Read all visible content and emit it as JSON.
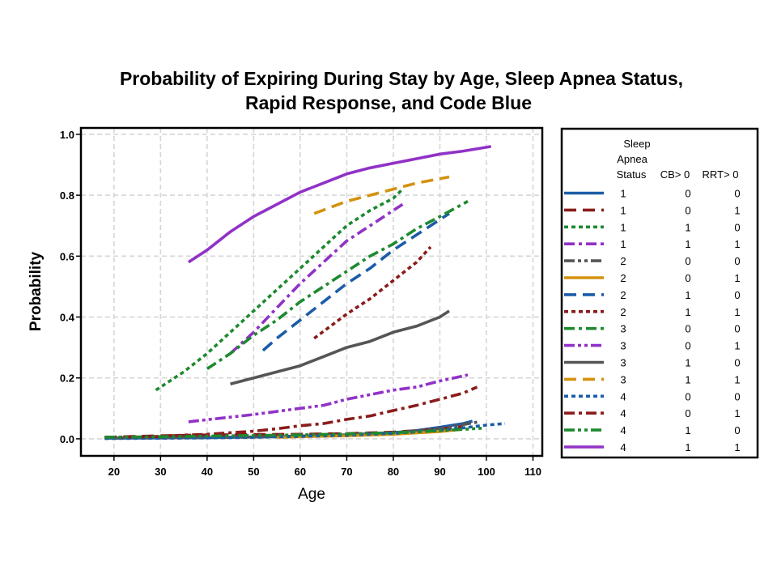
{
  "chart_data": {
    "type": "line",
    "title": [
      "Probability of Expiring During Stay by Age, Sleep Apnea Status,",
      "Rapid Response, and Code Blue"
    ],
    "xlabel": "Age",
    "ylabel": "Probability",
    "x_ticks": [
      20,
      30,
      40,
      50,
      60,
      70,
      80,
      90,
      100,
      110
    ],
    "y_ticks": [
      "0.0",
      "0.2",
      "0.4",
      "0.6",
      "0.8",
      "1.0"
    ],
    "xlim": [
      12.9,
      112
    ],
    "ylim": [
      -0.056,
      1.021
    ],
    "grid": true,
    "legend_position": "right",
    "legend": {
      "header_sleep_apnea_status": [
        "Sleep",
        "Apnea",
        "Status"
      ],
      "header_cb": "CB> 0",
      "header_rrt": "RRT> 0"
    },
    "series": [
      {
        "sleep_apnea_status": "1",
        "cb": "0",
        "rrt": "0",
        "color": "#1c5ca8",
        "line_style": "solid",
        "x": [
          18,
          30,
          40,
          50,
          60,
          70,
          80,
          85,
          90,
          95,
          97
        ],
        "y": [
          0.002,
          0.003,
          0.004,
          0.006,
          0.009,
          0.013,
          0.02,
          0.027,
          0.038,
          0.05,
          0.058
        ]
      },
      {
        "sleep_apnea_status": "1",
        "cb": "0",
        "rrt": "1",
        "color": "#8b1c1c",
        "line_style": "long-dash",
        "x": [
          18,
          25,
          30,
          40,
          50,
          60,
          70,
          80,
          90,
          95
        ],
        "y": [
          0.005,
          0.008,
          0.01,
          0.013,
          0.014,
          0.015,
          0.017,
          0.022,
          0.032,
          0.04
        ]
      },
      {
        "sleep_apnea_status": "1",
        "cb": "1",
        "rrt": "0",
        "color": "#1d8a2f",
        "line_style": "short-dash",
        "x": [
          29,
          35,
          40,
          45,
          50,
          55,
          60,
          65,
          70,
          75,
          80,
          82
        ],
        "y": [
          0.16,
          0.22,
          0.28,
          0.35,
          0.42,
          0.49,
          0.56,
          0.63,
          0.7,
          0.75,
          0.79,
          0.82
        ]
      },
      {
        "sleep_apnea_status": "1",
        "cb": "1",
        "rrt": "1",
        "color": "#9132c7",
        "line_style": "dash-dot",
        "x": [
          45,
          50,
          55,
          60,
          65,
          70,
          75,
          80,
          82
        ],
        "y": [
          0.28,
          0.35,
          0.43,
          0.51,
          0.58,
          0.65,
          0.7,
          0.75,
          0.77
        ]
      },
      {
        "sleep_apnea_status": "2",
        "cb": "0",
        "rrt": "0",
        "color": "#555555",
        "line_style": "dash-dot-dot",
        "x": [
          20,
          30,
          40,
          50,
          60,
          70,
          80,
          90,
          98
        ],
        "y": [
          0.002,
          0.003,
          0.004,
          0.006,
          0.009,
          0.013,
          0.02,
          0.034,
          0.055
        ]
      },
      {
        "sleep_apnea_status": "2",
        "cb": "0",
        "rrt": "1",
        "color": "#d4920f",
        "line_style": "solid",
        "x": [
          55,
          60,
          70,
          80,
          90,
          94
        ],
        "y": [
          0.005,
          0.007,
          0.01,
          0.015,
          0.024,
          0.03
        ]
      },
      {
        "sleep_apnea_status": "2",
        "cb": "1",
        "rrt": "0",
        "color": "#1c5ca8",
        "line_style": "long-dash",
        "x": [
          52,
          55,
          60,
          65,
          70,
          75,
          80,
          85,
          90,
          92
        ],
        "y": [
          0.29,
          0.33,
          0.39,
          0.45,
          0.51,
          0.56,
          0.62,
          0.67,
          0.72,
          0.74
        ]
      },
      {
        "sleep_apnea_status": "2",
        "cb": "1",
        "rrt": "1",
        "color": "#8b1c1c",
        "line_style": "short-dash",
        "x": [
          63,
          70,
          75,
          80,
          85,
          88
        ],
        "y": [
          0.33,
          0.41,
          0.46,
          0.52,
          0.58,
          0.63
        ]
      },
      {
        "sleep_apnea_status": "3",
        "cb": "0",
        "rrt": "0",
        "color": "#1d8a2f",
        "line_style": "dash-dot",
        "x": [
          40,
          45,
          50,
          55,
          60,
          65,
          70,
          75,
          80,
          85,
          90,
          96
        ],
        "y": [
          0.23,
          0.28,
          0.34,
          0.39,
          0.45,
          0.5,
          0.55,
          0.6,
          0.64,
          0.69,
          0.73,
          0.78
        ]
      },
      {
        "sleep_apnea_status": "3",
        "cb": "0",
        "rrt": "1",
        "color": "#9132c7",
        "line_style": "dash-dot-dot",
        "x": [
          36,
          40,
          45,
          50,
          55,
          60,
          65,
          70,
          75,
          80,
          85,
          90,
          96
        ],
        "y": [
          0.056,
          0.063,
          0.071,
          0.08,
          0.09,
          0.1,
          0.11,
          0.13,
          0.145,
          0.16,
          0.17,
          0.19,
          0.21
        ]
      },
      {
        "sleep_apnea_status": "3",
        "cb": "1",
        "rrt": "0",
        "color": "#555555",
        "line_style": "solid",
        "x": [
          45,
          50,
          55,
          60,
          65,
          70,
          75,
          80,
          85,
          90,
          92
        ],
        "y": [
          0.18,
          0.2,
          0.22,
          0.24,
          0.27,
          0.3,
          0.32,
          0.35,
          0.37,
          0.4,
          0.42
        ]
      },
      {
        "sleep_apnea_status": "3",
        "cb": "1",
        "rrt": "1",
        "color": "#d4920f",
        "line_style": "long-dash",
        "x": [
          63,
          70,
          75,
          80,
          85,
          92
        ],
        "y": [
          0.74,
          0.78,
          0.8,
          0.82,
          0.84,
          0.86
        ]
      },
      {
        "sleep_apnea_status": "4",
        "cb": "0",
        "rrt": "0",
        "color": "#1c5ca8",
        "line_style": "short-dash",
        "x": [
          18,
          30,
          40,
          50,
          60,
          70,
          80,
          90,
          95,
          100,
          104
        ],
        "y": [
          0.001,
          0.002,
          0.003,
          0.005,
          0.008,
          0.012,
          0.018,
          0.028,
          0.036,
          0.045,
          0.05
        ]
      },
      {
        "sleep_apnea_status": "4",
        "cb": "0",
        "rrt": "1",
        "color": "#8b1c1c",
        "line_style": "dash-dot",
        "x": [
          18,
          25,
          30,
          35,
          40,
          45,
          50,
          55,
          60,
          65,
          70,
          75,
          80,
          85,
          90,
          95,
          98
        ],
        "y": [
          0.005,
          0.006,
          0.008,
          0.012,
          0.015,
          0.02,
          0.025,
          0.033,
          0.043,
          0.05,
          0.064,
          0.075,
          0.093,
          0.11,
          0.13,
          0.15,
          0.17
        ]
      },
      {
        "sleep_apnea_status": "4",
        "cb": "1",
        "rrt": "0",
        "color": "#1d8a2f",
        "line_style": "dash-dot-dot",
        "x": [
          18,
          30,
          40,
          50,
          60,
          70,
          80,
          90,
          96,
          99
        ],
        "y": [
          0.005,
          0.007,
          0.009,
          0.011,
          0.013,
          0.016,
          0.02,
          0.027,
          0.032,
          0.035
        ]
      },
      {
        "sleep_apnea_status": "4",
        "cb": "1",
        "rrt": "1",
        "color": "#9132c7",
        "line_style": "solid",
        "x": [
          36,
          40,
          45,
          50,
          55,
          60,
          65,
          70,
          75,
          80,
          85,
          90,
          95,
          101
        ],
        "y": [
          0.58,
          0.62,
          0.68,
          0.73,
          0.77,
          0.81,
          0.84,
          0.87,
          0.89,
          0.905,
          0.92,
          0.935,
          0.945,
          0.96
        ]
      }
    ]
  }
}
